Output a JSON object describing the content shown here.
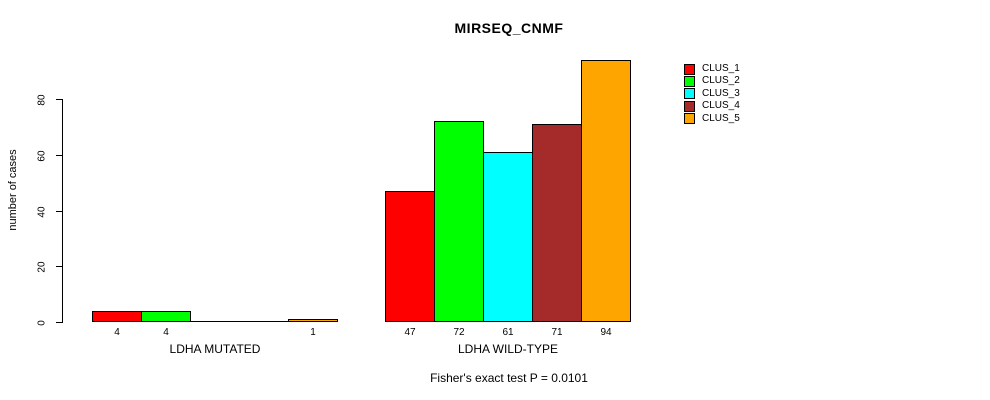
{
  "chart_data": {
    "type": "bar",
    "title": "MIRSEQ_CNMF",
    "ylabel": "number of cases",
    "xlabel": "",
    "yticks": [
      0,
      20,
      40,
      60,
      80
    ],
    "ylim": [
      0,
      80
    ],
    "grid": false,
    "legend_position": "top-right",
    "series": [
      {
        "name": "CLUS_1",
        "color": "#FF0000"
      },
      {
        "name": "CLUS_2",
        "color": "#00FF00"
      },
      {
        "name": "CLUS_3",
        "color": "#00FFFF"
      },
      {
        "name": "CLUS_4",
        "color": "#A52A2A"
      },
      {
        "name": "CLUS_5",
        "color": "#FFA500"
      }
    ],
    "groups": [
      {
        "label": "LDHA MUTATED",
        "values": [
          4,
          4,
          0,
          0,
          1
        ]
      },
      {
        "label": "LDHA WILD-TYPE",
        "values": [
          47,
          72,
          61,
          71,
          94
        ]
      }
    ],
    "bar_value_labels": [
      [
        "4",
        "4",
        "",
        "",
        "1"
      ],
      [
        "47",
        "72",
        "61",
        "71",
        "94"
      ]
    ],
    "caption": "Fisher's exact test P = 0.0101"
  }
}
